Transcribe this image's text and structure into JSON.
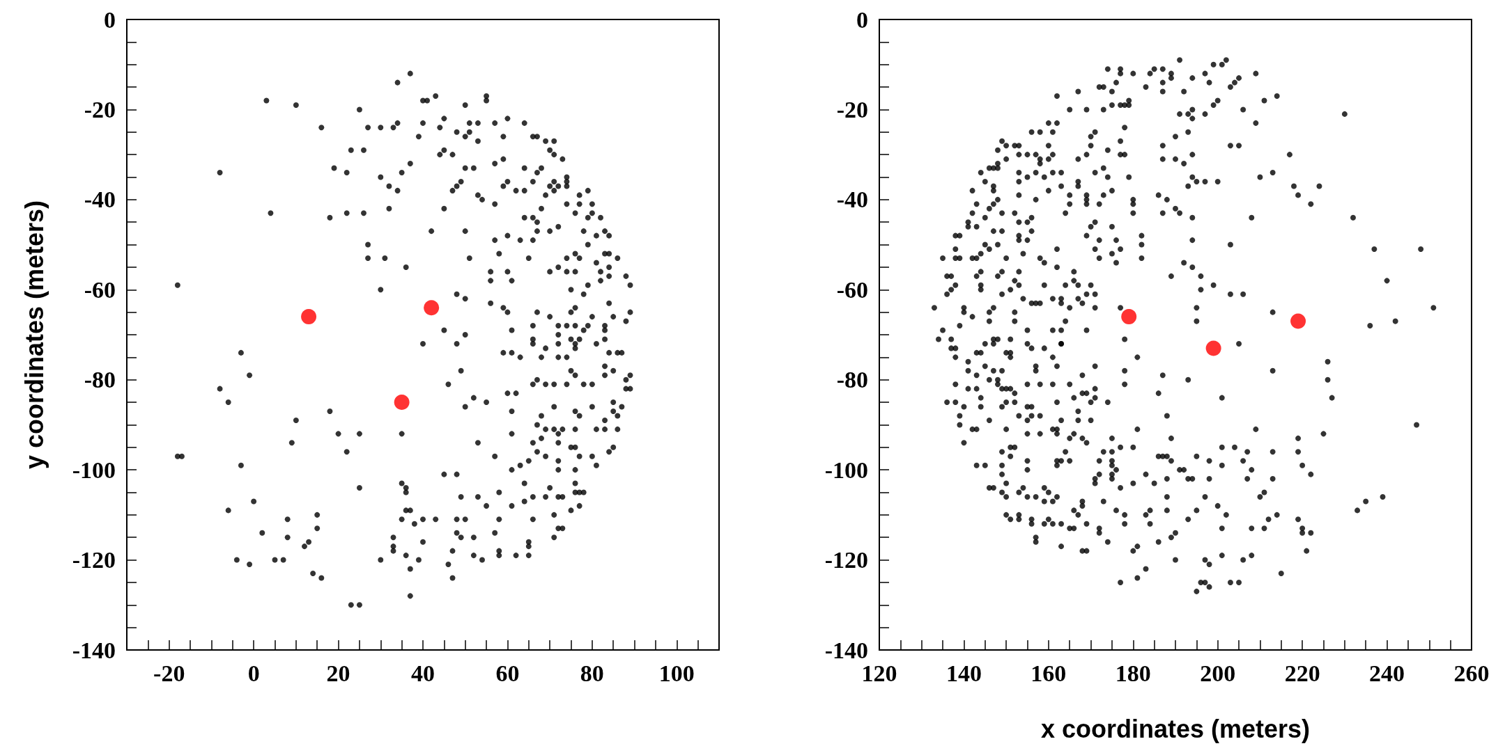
{
  "chart_data": [
    {
      "type": "scatter",
      "ylabel": "y coordinates (meters)",
      "marker": "circle",
      "xlim": [
        -30,
        110
      ],
      "ylim": [
        -140,
        0
      ],
      "xticks": [
        {
          "value": -25,
          "label": null
        },
        -20,
        {
          "value": -15,
          "label": null
        },
        {
          "value": -10,
          "label": null
        },
        {
          "value": -5,
          "label": null
        },
        0,
        {
          "value": 5,
          "label": null
        },
        {
          "value": 10,
          "label": null
        },
        {
          "value": 15,
          "label": null
        },
        20,
        {
          "value": 25,
          "label": null
        },
        {
          "value": 30,
          "label": null
        },
        {
          "value": 35,
          "label": null
        },
        40,
        {
          "value": 45,
          "label": null
        },
        {
          "value": 50,
          "label": null
        },
        {
          "value": 55,
          "label": null
        },
        60,
        {
          "value": 65,
          "label": null
        },
        {
          "value": 70,
          "label": null
        },
        {
          "value": 75,
          "label": null
        },
        80,
        {
          "value": 85,
          "label": null
        },
        {
          "value": 90,
          "label": null
        },
        {
          "value": 95,
          "label": null
        },
        100,
        {
          "value": 105,
          "label": null
        }
      ],
      "yticks": [
        -140,
        {
          "value": -135,
          "label": null
        },
        {
          "value": -130,
          "label": null
        },
        {
          "value": -125,
          "label": null
        },
        -120,
        {
          "value": -115,
          "label": null
        },
        {
          "value": -110,
          "label": null
        },
        {
          "value": -105,
          "label": null
        },
        -100,
        {
          "value": -95,
          "label": null
        },
        {
          "value": -90,
          "label": null
        },
        {
          "value": -85,
          "label": null
        },
        -80,
        {
          "value": -75,
          "label": null
        },
        {
          "value": -70,
          "label": null
        },
        {
          "value": -65,
          "label": null
        },
        -60,
        {
          "value": -55,
          "label": null
        },
        {
          "value": -50,
          "label": null
        },
        {
          "value": -45,
          "label": null
        },
        -40,
        {
          "value": -35,
          "label": null
        },
        {
          "value": -30,
          "label": null
        },
        {
          "value": -25,
          "label": null
        },
        -20,
        {
          "value": -15,
          "label": null
        },
        {
          "value": -10,
          "label": null
        },
        {
          "value": -5,
          "label": null
        },
        0
      ],
      "series": [
        {
          "color": "#000000",
          "x": [
            3,
            10,
            16,
            25,
            34,
            37,
            -8,
            4,
            -18,
            19,
            22,
            23,
            26,
            27,
            30,
            33,
            34,
            18,
            22,
            26,
            30,
            32,
            34,
            35,
            37,
            32,
            27,
            27,
            31,
            36,
            30,
            40,
            41,
            43,
            40,
            39,
            44,
            45,
            45,
            44,
            47,
            50,
            51,
            48,
            50,
            51,
            53,
            53,
            55,
            55,
            57,
            59,
            60,
            64,
            66,
            67,
            69,
            71,
            70,
            71,
            73,
            74,
            74,
            74,
            79,
            77,
            80,
            82,
            83,
            84,
            81,
            79,
            78,
            80,
            79,
            76,
            74,
            77,
            71,
            70,
            72,
            69,
            71,
            68,
            67,
            68,
            66,
            64,
            62,
            64,
            60,
            59,
            59,
            57,
            57,
            53,
            54,
            52,
            50,
            49,
            48,
            47,
            45,
            42,
            50,
            51,
            57,
            58,
            60,
            63,
            66,
            64,
            66,
            67,
            67,
            70,
            72,
            65,
            74,
            76,
            77,
            81,
            83,
            84,
            86,
            84,
            84,
            82,
            82,
            79,
            76,
            74,
            72,
            70,
            75,
            78,
            88,
            89,
            89,
            88,
            85,
            84,
            80,
            83,
            83,
            83,
            79,
            78,
            76,
            74,
            72,
            76,
            75,
            77,
            75,
            72,
            72,
            70,
            67,
            66,
            66,
            61,
            60,
            59,
            56,
            56,
            56,
            60,
            61,
            48,
            50,
            45,
            50,
            48,
            40,
            -3,
            -1,
            -8,
            -6,
            18,
            10,
            9,
            20,
            25,
            22,
            -18,
            -17,
            -3,
            35,
            25,
            0,
            -6,
            8,
            15,
            15,
            2,
            8,
            13,
            12,
            -4,
            -1,
            5,
            7,
            14,
            16,
            23,
            25,
            37,
            35,
            36,
            36,
            36,
            37,
            35,
            38,
            40,
            43,
            33,
            33,
            33,
            36,
            39,
            37,
            30,
            40,
            45,
            48,
            46,
            49,
            50,
            52,
            55,
            53,
            57,
            49,
            53,
            55,
            48,
            50,
            48,
            49,
            47,
            46,
            47,
            52,
            52,
            54,
            57,
            58,
            58,
            62,
            65,
            65,
            65,
            58,
            58,
            61,
            61,
            63,
            65,
            64,
            66,
            64,
            66,
            70,
            69,
            72,
            73,
            71,
            72,
            71,
            73,
            76,
            76,
            76,
            77,
            78,
            77,
            75,
            72,
            72,
            75,
            76,
            77,
            80,
            81,
            84,
            85,
            83,
            86,
            81,
            83,
            86,
            87,
            85,
            85,
            80,
            88,
            89,
            88,
            89,
            83,
            85,
            83,
            78,
            80,
            74,
            71,
            69,
            66,
            67,
            71,
            76,
            77,
            68,
            67,
            69,
            71,
            72,
            73,
            76,
            68,
            72,
            66,
            67,
            69,
            61,
            61,
            60,
            62,
            76,
            75,
            74,
            72,
            76,
            63,
            61,
            59,
            68,
            69,
            66,
            84,
            86,
            87,
            81,
            76
          ],
          "values": [
            -18,
            -19,
            -24,
            -20,
            -14,
            -12,
            -34,
            -43,
            -59,
            -33,
            -34,
            -29,
            -29,
            -24,
            -24,
            -24,
            -23,
            -44,
            -43,
            -43,
            -35,
            -37,
            -38,
            -34,
            -32,
            -42,
            -50,
            -53,
            -53,
            -55,
            -60,
            -18,
            -18,
            -17,
            -23,
            -26,
            -24,
            -22,
            -29,
            -30,
            -30,
            -19,
            -23,
            -25,
            -26,
            -25,
            -27,
            -23,
            -18,
            -17,
            -23,
            -26,
            -22,
            -23,
            -26,
            -26,
            -27,
            -27,
            -29,
            -30,
            -31,
            -35,
            -37,
            -36,
            -38,
            -39,
            -41,
            -44,
            -47,
            -48,
            -48,
            -50,
            -47,
            -43,
            -44,
            -43,
            -41,
            -41,
            -36,
            -37,
            -37,
            -39,
            -38,
            -42,
            -34,
            -33,
            -36,
            -33,
            -38,
            -38,
            -36,
            -37,
            -31,
            -32,
            -41,
            -39,
            -40,
            -33,
            -33,
            -36,
            -37,
            -38,
            -42,
            -47,
            -47,
            -53,
            -49,
            -52,
            -48,
            -49,
            -49,
            -44,
            -44,
            -45,
            -47,
            -47,
            -46,
            -53,
            -53,
            -52,
            -53,
            -54,
            -52,
            -52,
            -53,
            -55,
            -57,
            -56,
            -58,
            -59,
            -56,
            -56,
            -55,
            -56,
            -60,
            -61,
            -57,
            -59,
            -65,
            -67,
            -66,
            -63,
            -66,
            -68,
            -69,
            -71,
            -68,
            -69,
            -68,
            -68,
            -68,
            -64,
            -65,
            -71,
            -71,
            -70,
            -72,
            -66,
            -65,
            -68,
            -71,
            -69,
            -65,
            -64,
            -63,
            -58,
            -56,
            -56,
            -58,
            -61,
            -62,
            -69,
            -70,
            -72,
            -72,
            -74,
            -79,
            -82,
            -85,
            -87,
            -89,
            -94,
            -92,
            -92,
            -96,
            -97,
            -97,
            -99,
            -92,
            -104,
            -107,
            -109,
            -111,
            -110,
            -113,
            -114,
            -115,
            -116,
            -117,
            -120,
            -121,
            -120,
            -120,
            -123,
            -124,
            -130,
            -130,
            -128,
            -103,
            -104,
            -105,
            -109,
            -109,
            -111,
            -112,
            -111,
            -111,
            -115,
            -117,
            -118,
            -119,
            -120,
            -122,
            -120,
            -116,
            -101,
            -101,
            -81,
            -78,
            -86,
            -84,
            -85,
            -94,
            -97,
            -106,
            -106,
            -108,
            -111,
            -111,
            -114,
            -115,
            -118,
            -121,
            -124,
            -119,
            -115,
            -120,
            -114,
            -118,
            -119,
            -119,
            -119,
            -117,
            -116,
            -111,
            -105,
            -108,
            -100,
            -99,
            -98,
            -103,
            -106,
            -107,
            -111,
            -104,
            -106,
            -106,
            -106,
            -110,
            -113,
            -115,
            -113,
            -105,
            -103,
            -100,
            -105,
            -105,
            -108,
            -109,
            -100,
            -98,
            -95,
            -95,
            -97,
            -97,
            -99,
            -96,
            -95,
            -91,
            -91,
            -91,
            -89,
            -88,
            -86,
            -85,
            -87,
            -86,
            -80,
            -82,
            -82,
            -79,
            -79,
            -78,
            -77,
            -81,
            -81,
            -81,
            -81,
            -81,
            -81,
            -80,
            -86,
            -87,
            -88,
            -88,
            -90,
            -91,
            -91,
            -92,
            -91,
            -91,
            -93,
            -94,
            -94,
            -96,
            -97,
            -87,
            -92,
            -83,
            -83,
            -79,
            -78,
            -75,
            -75,
            -73,
            -75,
            -74,
            -74,
            -75,
            -73,
            -72,
            -74,
            -74,
            -74,
            -72,
            -72
          ]
        },
        {
          "color": "#ff0000",
          "x": [
            13,
            42,
            35
          ],
          "values": [
            -66,
            -64,
            -85
          ]
        }
      ]
    },
    {
      "type": "scatter",
      "xlabel": "x coordinates (meters)",
      "marker": "circle",
      "xlim": [
        120,
        260
      ],
      "ylim": [
        -140,
        0
      ],
      "xticks": [
        120,
        {
          "value": 125,
          "label": null
        },
        {
          "value": 130,
          "label": null
        },
        {
          "value": 135,
          "label": null
        },
        140,
        {
          "value": 145,
          "label": null
        },
        {
          "value": 150,
          "label": null
        },
        {
          "value": 155,
          "label": null
        },
        160,
        {
          "value": 165,
          "label": null
        },
        {
          "value": 170,
          "label": null
        },
        {
          "value": 175,
          "label": null
        },
        180,
        {
          "value": 185,
          "label": null
        },
        {
          "value": 190,
          "label": null
        },
        {
          "value": 195,
          "label": null
        },
        200,
        {
          "value": 205,
          "label": null
        },
        {
          "value": 210,
          "label": null
        },
        {
          "value": 215,
          "label": null
        },
        220,
        {
          "value": 225,
          "label": null
        },
        {
          "value": 230,
          "label": null
        },
        {
          "value": 235,
          "label": null
        },
        240,
        {
          "value": 245,
          "label": null
        },
        {
          "value": 250,
          "label": null
        },
        {
          "value": 255,
          "label": null
        },
        260
      ],
      "yticks": [
        -140,
        {
          "value": -135,
          "label": null
        },
        {
          "value": -130,
          "label": null
        },
        {
          "value": -125,
          "label": null
        },
        -120,
        {
          "value": -115,
          "label": null
        },
        {
          "value": -110,
          "label": null
        },
        {
          "value": -105,
          "label": null
        },
        -100,
        {
          "value": -95,
          "label": null
        },
        {
          "value": -90,
          "label": null
        },
        {
          "value": -85,
          "label": null
        },
        -80,
        {
          "value": -75,
          "label": null
        },
        {
          "value": -70,
          "label": null
        },
        {
          "value": -65,
          "label": null
        },
        -60,
        {
          "value": -55,
          "label": null
        },
        {
          "value": -50,
          "label": null
        },
        {
          "value": -45,
          "label": null
        },
        -40,
        {
          "value": -35,
          "label": null
        },
        {
          "value": -30,
          "label": null
        },
        {
          "value": -25,
          "label": null
        },
        -20,
        {
          "value": -15,
          "label": null
        },
        {
          "value": -10,
          "label": null
        },
        {
          "value": -5,
          "label": null
        },
        0
      ],
      "series": [
        {
          "color": "#000000",
          "x": [
            191,
            199,
            202,
            201,
            177,
            174,
            177,
            180,
            185,
            187,
            189,
            189,
            184,
            187,
            187,
            183,
            176,
            172,
            173,
            175,
            197,
            198,
            194,
            204,
            203,
            205,
            209,
            211,
            214,
            230,
            192,
            200,
            199,
            206,
            194,
            193,
            191,
            197,
            194,
            209,
            190,
            193,
            187,
            194,
            187,
            190,
            192,
            203,
            205,
            217,
            210,
            213,
            218,
            219,
            224,
            222,
            232,
            237,
            248,
            240,
            251,
            242,
            236,
            208,
            203,
            194,
            192,
            194,
            196,
            189,
            196,
            199,
            203,
            206,
            195,
            195,
            213,
            205,
            178,
            177,
            194,
            195,
            197,
            200,
            193,
            186,
            188,
            187,
            190,
            191,
            194,
            179,
            180,
            180,
            180,
            182,
            182,
            182,
            178,
            177,
            177,
            178,
            179,
            179,
            178,
            177,
            175,
            173,
            169,
            165,
            167,
            162,
            174,
            171,
            170,
            170,
            167,
            169,
            173,
            171,
            174,
            175,
            173,
            172,
            167,
            167,
            169,
            169,
            169,
            171,
            175,
            170,
            169,
            172,
            176,
            177,
            171,
            172,
            175,
            176,
            165,
            165,
            164,
            163,
            161,
            163,
            159,
            160,
            157,
            160,
            161,
            160,
            161,
            162,
            160,
            158,
            156,
            155,
            153,
            152,
            149,
            150,
            148,
            150,
            148,
            147,
            148,
            146,
            144,
            153,
            157,
            158,
            158,
            157,
            155,
            153,
            153,
            153,
            156,
            153,
            155,
            156,
            145,
            147,
            147,
            142,
            148,
            146,
            147,
            145,
            142,
            143,
            143,
            141,
            141,
            149,
            152,
            147,
            149,
            148,
            153,
            153,
            155,
            154,
            150,
            145,
            146,
            144,
            142,
            143,
            138,
            139,
            138,
            138,
            139,
            135,
            136,
            137,
            138,
            136,
            137,
            133,
            140,
            140,
            142,
            139,
            135,
            134,
            137,
            138,
            143,
            144,
            144,
            144,
            146,
            147,
            149,
            148,
            149,
            151,
            152,
            153,
            153,
            154,
            152,
            152,
            146,
            147,
            148,
            151,
            155,
            158,
            159,
            158,
            159,
            162,
            162,
            156,
            157,
            161,
            163,
            163,
            164,
            166,
            167,
            166,
            165,
            164,
            169,
            163,
            161,
            163,
            167,
            168,
            169,
            170,
            171,
            171,
            137,
            138,
            141,
            143,
            144,
            145,
            147,
            150,
            151,
            151,
            155,
            156,
            159,
            161,
            163,
            162,
            157,
            157,
            141,
            145,
            143,
            146,
            147,
            149,
            148,
            148,
            150,
            149,
            151,
            152,
            155,
            158,
            161,
            165,
            138,
            141,
            143,
            144,
            144,
            136,
            138,
            140,
            139,
            139,
            140,
            142,
            143,
            146,
            149,
            150,
            152,
            153,
            155,
            156,
            156,
            158,
            155,
            150,
            151,
            152,
            149,
            151,
            155,
            155,
            155,
            158,
            149,
            149,
            143,
            145,
            150,
            149,
            150,
            146,
            147,
            153,
            154,
            155,
            157,
            159,
            160,
            159,
            161,
            162,
            150,
            151,
            153,
            153,
            156,
            156,
            159,
            160,
            161,
            163,
            157,
            157,
            163,
            165,
            166,
            166,
            167,
            168,
            168,
            169,
            168,
            169,
            162,
            162,
            161,
            163,
            162,
            163,
            162,
            162,
            164,
            165,
            166,
            165,
            167,
            167,
            166,
            168,
            168,
            169,
            170,
            171,
            171,
            171,
            174,
            170,
            168,
            169,
            172,
            173,
            171,
            171,
            172,
            173,
            175,
            175,
            175,
            175,
            175,
            175,
            177,
            176,
            177,
            176,
            178,
            178,
            172,
            172,
            174,
            178,
            178,
            180,
            181,
            180,
            177,
            181,
            181,
            180,
            183,
            183,
            185,
            184,
            183,
            184,
            186,
            189,
            190,
            190,
            188,
            188,
            188,
            186,
            187,
            188,
            189,
            189,
            188,
            187,
            186,
            181,
            193,
            191,
            192,
            193,
            194,
            193,
            195,
            195,
            198,
            201,
            198,
            197,
            200,
            202,
            201,
            201,
            204,
            207,
            206,
            208,
            207,
            201,
            197,
            198,
            196,
            197,
            198,
            195,
            201,
            203,
            205,
            206,
            208,
            208,
            209,
            210,
            211,
            211,
            212,
            214,
            213,
            213,
            215,
            219,
            219,
            220,
            222,
            225,
            219,
            220,
            220,
            222,
            221,
            226,
            226,
            227,
            233,
            235,
            239,
            247,
            213
          ],
          "values": [
            -9,
            -10,
            -9,
            -10,
            -11,
            -11,
            -12,
            -12,
            -11,
            -11,
            -12,
            -13,
            -12,
            -14,
            -16,
            -15,
            -14,
            -15,
            -15,
            -16,
            -12,
            -14,
            -13,
            -14,
            -15,
            -13,
            -12,
            -18,
            -17,
            -21,
            -16,
            -18,
            -19,
            -20,
            -20,
            -21,
            -21,
            -21,
            -22,
            -23,
            -26,
            -25,
            -28,
            -30,
            -31,
            -31,
            -32,
            -28,
            -28,
            -30,
            -35,
            -34,
            -37,
            -39,
            -37,
            -41,
            -44,
            -51,
            -51,
            -58,
            -64,
            -67,
            -68,
            -44,
            -50,
            -49,
            -54,
            -55,
            -57,
            -57,
            -60,
            -59,
            -61,
            -61,
            -64,
            -67,
            -65,
            -72,
            -71,
            -64,
            -35,
            -36,
            -36,
            -36,
            -37,
            -39,
            -40,
            -43,
            -42,
            -43,
            -44,
            -35,
            -40,
            -41,
            -43,
            -48,
            -50,
            -53,
            -24,
            -27,
            -30,
            -30,
            -18,
            -19,
            -19,
            -19,
            -19,
            -20,
            -20,
            -20,
            -16,
            -17,
            -29,
            -25,
            -26,
            -28,
            -31,
            -30,
            -33,
            -34,
            -35,
            -38,
            -39,
            -41,
            -36,
            -37,
            -39,
            -40,
            -41,
            -45,
            -46,
            -46,
            -48,
            -49,
            -49,
            -51,
            -51,
            -53,
            -52,
            -54,
            -39,
            -41,
            -43,
            -37,
            -34,
            -34,
            -35,
            -38,
            -40,
            -31,
            -30,
            -28,
            -25,
            -23,
            -23,
            -25,
            -25,
            -30,
            -28,
            -28,
            -27,
            -28,
            -29,
            -31,
            -32,
            -33,
            -33,
            -33,
            -34,
            -30,
            -30,
            -31,
            -32,
            -34,
            -35,
            -34,
            -36,
            -39,
            -44,
            -45,
            -45,
            -47,
            -36,
            -37,
            -38,
            -38,
            -40,
            -42,
            -41,
            -44,
            -43,
            -41,
            -46,
            -46,
            -45,
            -43,
            -43,
            -47,
            -47,
            -50,
            -48,
            -49,
            -49,
            -52,
            -53,
            -50,
            -51,
            -52,
            -53,
            -53,
            -48,
            -48,
            -51,
            -53,
            -53,
            -53,
            -57,
            -57,
            -59,
            -61,
            -60,
            -64,
            -64,
            -65,
            -66,
            -68,
            -69,
            -71,
            -71,
            -73,
            -57,
            -56,
            -59,
            -60,
            -65,
            -64,
            -56,
            -57,
            -61,
            -60,
            -58,
            -59,
            -56,
            -62,
            -65,
            -67,
            -67,
            -71,
            -71,
            -71,
            -69,
            -63,
            -59,
            -53,
            -54,
            -55,
            -51,
            -63,
            -63,
            -62,
            -63,
            -62,
            -59,
            -58,
            -59,
            -56,
            -64,
            -67,
            -69,
            -69,
            -69,
            -72,
            -62,
            -63,
            -61,
            -59,
            -61,
            -64,
            -73,
            -75,
            -76,
            -74,
            -74,
            -72,
            -72,
            -74,
            -74,
            -75,
            -72,
            -73,
            -73,
            -75,
            -72,
            -77,
            -77,
            -78,
            -78,
            -77,
            -79,
            -80,
            -78,
            -78,
            -80,
            -81,
            -82,
            -82,
            -82,
            -83,
            -81,
            -81,
            -81,
            -81,
            -81,
            -82,
            -82,
            -84,
            -86,
            -85,
            -85,
            -86,
            -88,
            -90,
            -94,
            -91,
            -91,
            -89,
            -86,
            -85,
            -85,
            -88,
            -86,
            -86,
            -88,
            -88,
            -89,
            -91,
            -95,
            -95,
            -96,
            -97,
            -92,
            -98,
            -100,
            -92,
            -99,
            -101,
            -99,
            -99,
            -103,
            -105,
            -106,
            -104,
            -104,
            -105,
            -104,
            -106,
            -106,
            -104,
            -105,
            -107,
            -107,
            -106,
            -110,
            -111,
            -111,
            -110,
            -111,
            -112,
            -112,
            -111,
            -112,
            -112,
            -115,
            -116,
            -117,
            -113,
            -113,
            -109,
            -110,
            -108,
            -107,
            -112,
            -118,
            -118,
            -91,
            -92,
            -91,
            -89,
            -85,
            -98,
            -99,
            -98,
            -96,
            -98,
            -92,
            -93,
            -89,
            -87,
            -84,
            -83,
            -79,
            -83,
            -85,
            -82,
            -77,
            -84,
            -85,
            -89,
            -93,
            -94,
            -98,
            -96,
            -102,
            -103,
            -101,
            -107,
            -101,
            -102,
            -93,
            -96,
            -98,
            -99,
            -95,
            -100,
            -104,
            -109,
            -110,
            -112,
            -113,
            -114,
            -116,
            -78,
            -81,
            -95,
            -91,
            -103,
            -125,
            -124,
            -117,
            -118,
            -122,
            -101,
            -103,
            -109,
            -110,
            -112,
            -116,
            -115,
            -114,
            -120,
            -109,
            -106,
            -102,
            -97,
            -97,
            -97,
            -98,
            -93,
            -88,
            -79,
            -83,
            -75,
            -80,
            -100,
            -100,
            -102,
            -102,
            -111,
            -109,
            -97,
            -98,
            -99,
            -102,
            -106,
            -108,
            -110,
            -113,
            -95,
            -95,
            -96,
            -98,
            -100,
            -102,
            -84,
            -120,
            -121,
            -125,
            -125,
            -126,
            -127,
            -119,
            -125,
            -125,
            -120,
            -119,
            -113,
            -91,
            -106,
            -105,
            -113,
            -111,
            -110,
            -102,
            -96,
            -123,
            -93,
            -96,
            -99,
            -101,
            -92,
            -111,
            -113,
            -114,
            -114,
            -118,
            -76,
            -80,
            -84,
            -109,
            -107,
            -106,
            -90,
            -78
          ]
        },
        {
          "color": "#ff0000",
          "x": [
            179,
            219,
            199
          ],
          "values": [
            -66,
            -67,
            -73
          ]
        }
      ]
    }
  ]
}
